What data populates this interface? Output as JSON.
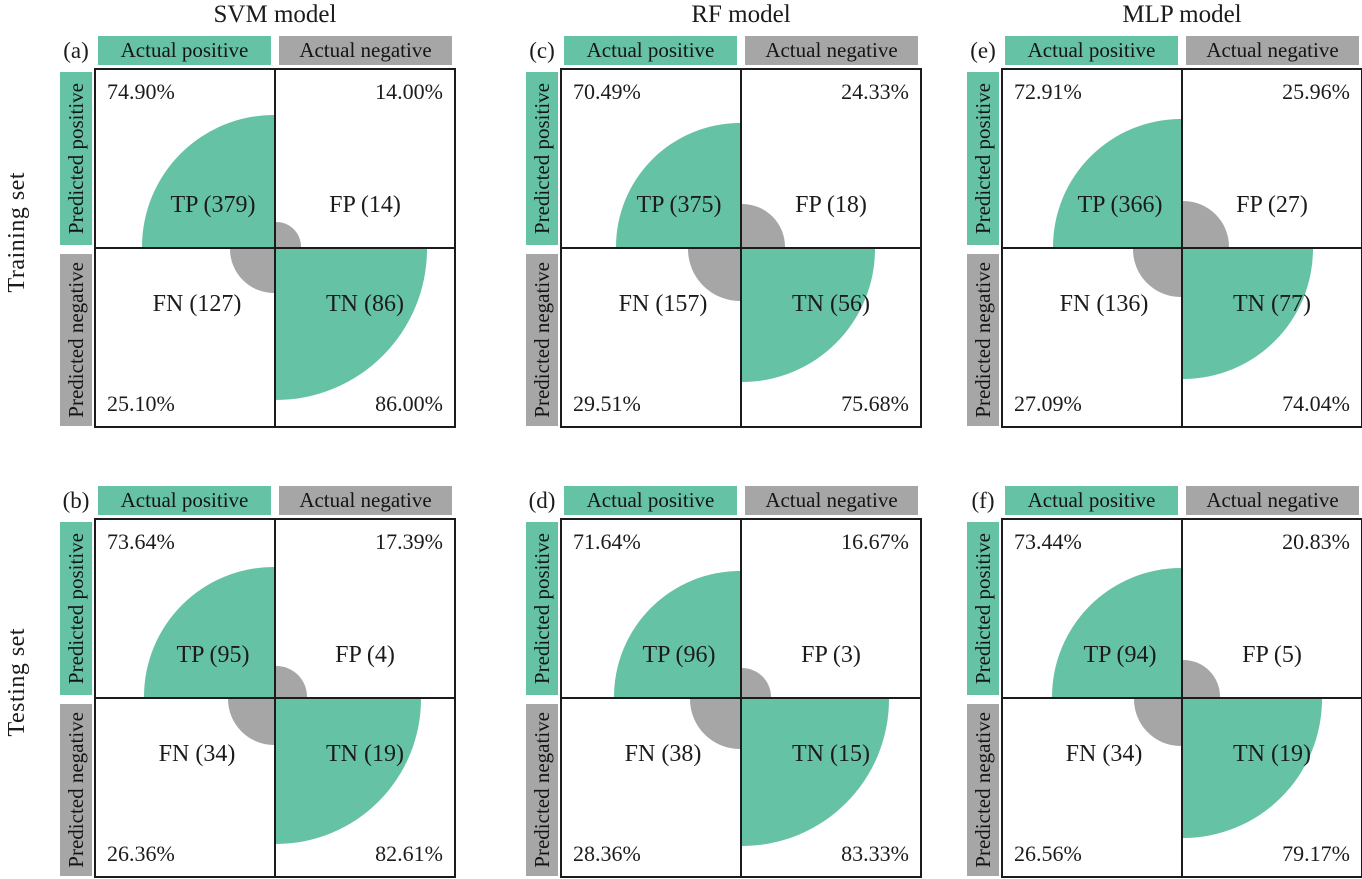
{
  "figure": {
    "column_titles": [
      "SVM model",
      "RF model",
      "MLP model"
    ],
    "row_titles": [
      "Training set",
      "Testing set"
    ],
    "axis_labels": {
      "col_pos": "Actual positive",
      "col_neg": "Actual negative",
      "row_pos": "Predicted positive",
      "row_neg": "Predicted negative"
    },
    "colors": {
      "positive_green": "#66c2a5",
      "negative_gray": "#a6a6a6",
      "line_black": "#1b1b1b"
    }
  },
  "panels": [
    {
      "tag": "(a)",
      "model": "SVM model",
      "dataset": "Training set",
      "tp": {
        "pct": "74.90%",
        "label": "TP (379)"
      },
      "fp": {
        "pct": "14.00%",
        "label": "FP (14)"
      },
      "fn": {
        "pct": "25.10%",
        "label": "FN (127)"
      },
      "tn": {
        "pct": "86.00%",
        "label": "TN (86)"
      }
    },
    {
      "tag": "(c)",
      "model": "RF model",
      "dataset": "Training set",
      "tp": {
        "pct": "70.49%",
        "label": "TP (375)"
      },
      "fp": {
        "pct": "24.33%",
        "label": "FP (18)"
      },
      "fn": {
        "pct": "29.51%",
        "label": "FN (157)"
      },
      "tn": {
        "pct": "75.68%",
        "label": "TN (56)"
      }
    },
    {
      "tag": "(e)",
      "model": "MLP model",
      "dataset": "Training set",
      "tp": {
        "pct": "72.91%",
        "label": "TP (366)"
      },
      "fp": {
        "pct": "25.96%",
        "label": "FP (27)"
      },
      "fn": {
        "pct": "27.09%",
        "label": "FN (136)"
      },
      "tn": {
        "pct": "74.04%",
        "label": "TN (77)"
      }
    },
    {
      "tag": "(b)",
      "model": "SVM model",
      "dataset": "Testing set",
      "tp": {
        "pct": "73.64%",
        "label": "TP (95)"
      },
      "fp": {
        "pct": "17.39%",
        "label": "FP (4)"
      },
      "fn": {
        "pct": "26.36%",
        "label": "FN (34)"
      },
      "tn": {
        "pct": "82.61%",
        "label": "TN (19)"
      }
    },
    {
      "tag": "(d)",
      "model": "RF model",
      "dataset": "Testing set",
      "tp": {
        "pct": "71.64%",
        "label": "TP (96)"
      },
      "fp": {
        "pct": "16.67%",
        "label": "FP (3)"
      },
      "fn": {
        "pct": "28.36%",
        "label": "FN (38)"
      },
      "tn": {
        "pct": "83.33%",
        "label": "TN (15)"
      }
    },
    {
      "tag": "(f)",
      "model": "MLP model",
      "dataset": "Testing set",
      "tp": {
        "pct": "73.44%",
        "label": "TP (94)"
      },
      "fp": {
        "pct": "20.83%",
        "label": "FP (5)"
      },
      "fn": {
        "pct": "26.56%",
        "label": "FN (34)"
      },
      "tn": {
        "pct": "79.17%",
        "label": "TN (19)"
      }
    }
  ],
  "chart_data": [
    {
      "type": "heatmap",
      "panel": "(a)",
      "title": "SVM model - Training set",
      "x_categories": [
        "Actual positive",
        "Actual negative"
      ],
      "y_categories": [
        "Predicted positive",
        "Predicted negative"
      ],
      "cell_labels": [
        [
          "TP",
          "FP"
        ],
        [
          "FN",
          "TN"
        ]
      ],
      "counts": [
        [
          379,
          14
        ],
        [
          127,
          86
        ]
      ],
      "percentages": [
        [
          74.9,
          14.0
        ],
        [
          25.1,
          86.0
        ]
      ]
    },
    {
      "type": "heatmap",
      "panel": "(c)",
      "title": "RF model - Training set",
      "x_categories": [
        "Actual positive",
        "Actual negative"
      ],
      "y_categories": [
        "Predicted positive",
        "Predicted negative"
      ],
      "cell_labels": [
        [
          "TP",
          "FP"
        ],
        [
          "FN",
          "TN"
        ]
      ],
      "counts": [
        [
          375,
          18
        ],
        [
          157,
          56
        ]
      ],
      "percentages": [
        [
          70.49,
          24.33
        ],
        [
          29.51,
          75.68
        ]
      ]
    },
    {
      "type": "heatmap",
      "panel": "(e)",
      "title": "MLP model - Training set",
      "x_categories": [
        "Actual positive",
        "Actual negative"
      ],
      "y_categories": [
        "Predicted positive",
        "Predicted negative"
      ],
      "cell_labels": [
        [
          "TP",
          "FP"
        ],
        [
          "FN",
          "TN"
        ]
      ],
      "counts": [
        [
          366,
          27
        ],
        [
          136,
          77
        ]
      ],
      "percentages": [
        [
          72.91,
          25.96
        ],
        [
          27.09,
          74.04
        ]
      ]
    },
    {
      "type": "heatmap",
      "panel": "(b)",
      "title": "SVM model - Testing set",
      "x_categories": [
        "Actual positive",
        "Actual negative"
      ],
      "y_categories": [
        "Predicted positive",
        "Predicted negative"
      ],
      "cell_labels": [
        [
          "TP",
          "FP"
        ],
        [
          "FN",
          "TN"
        ]
      ],
      "counts": [
        [
          95,
          4
        ],
        [
          34,
          19
        ]
      ],
      "percentages": [
        [
          73.64,
          17.39
        ],
        [
          26.36,
          82.61
        ]
      ]
    },
    {
      "type": "heatmap",
      "panel": "(d)",
      "title": "RF model - Testing set",
      "x_categories": [
        "Actual positive",
        "Actual negative"
      ],
      "y_categories": [
        "Predicted positive",
        "Predicted negative"
      ],
      "cell_labels": [
        [
          "TP",
          "FP"
        ],
        [
          "FN",
          "TN"
        ]
      ],
      "counts": [
        [
          96,
          3
        ],
        [
          38,
          15
        ]
      ],
      "percentages": [
        [
          71.64,
          16.67
        ],
        [
          28.36,
          83.33
        ]
      ]
    },
    {
      "type": "heatmap",
      "panel": "(f)",
      "title": "MLP model - Testing set",
      "x_categories": [
        "Actual positive",
        "Actual negative"
      ],
      "y_categories": [
        "Predicted positive",
        "Predicted negative"
      ],
      "cell_labels": [
        [
          "TP",
          "FP"
        ],
        [
          "FN",
          "TN"
        ]
      ],
      "counts": [
        [
          94,
          5
        ],
        [
          34,
          19
        ]
      ],
      "percentages": [
        [
          73.44,
          20.83
        ],
        [
          26.56,
          79.17
        ]
      ]
    }
  ]
}
